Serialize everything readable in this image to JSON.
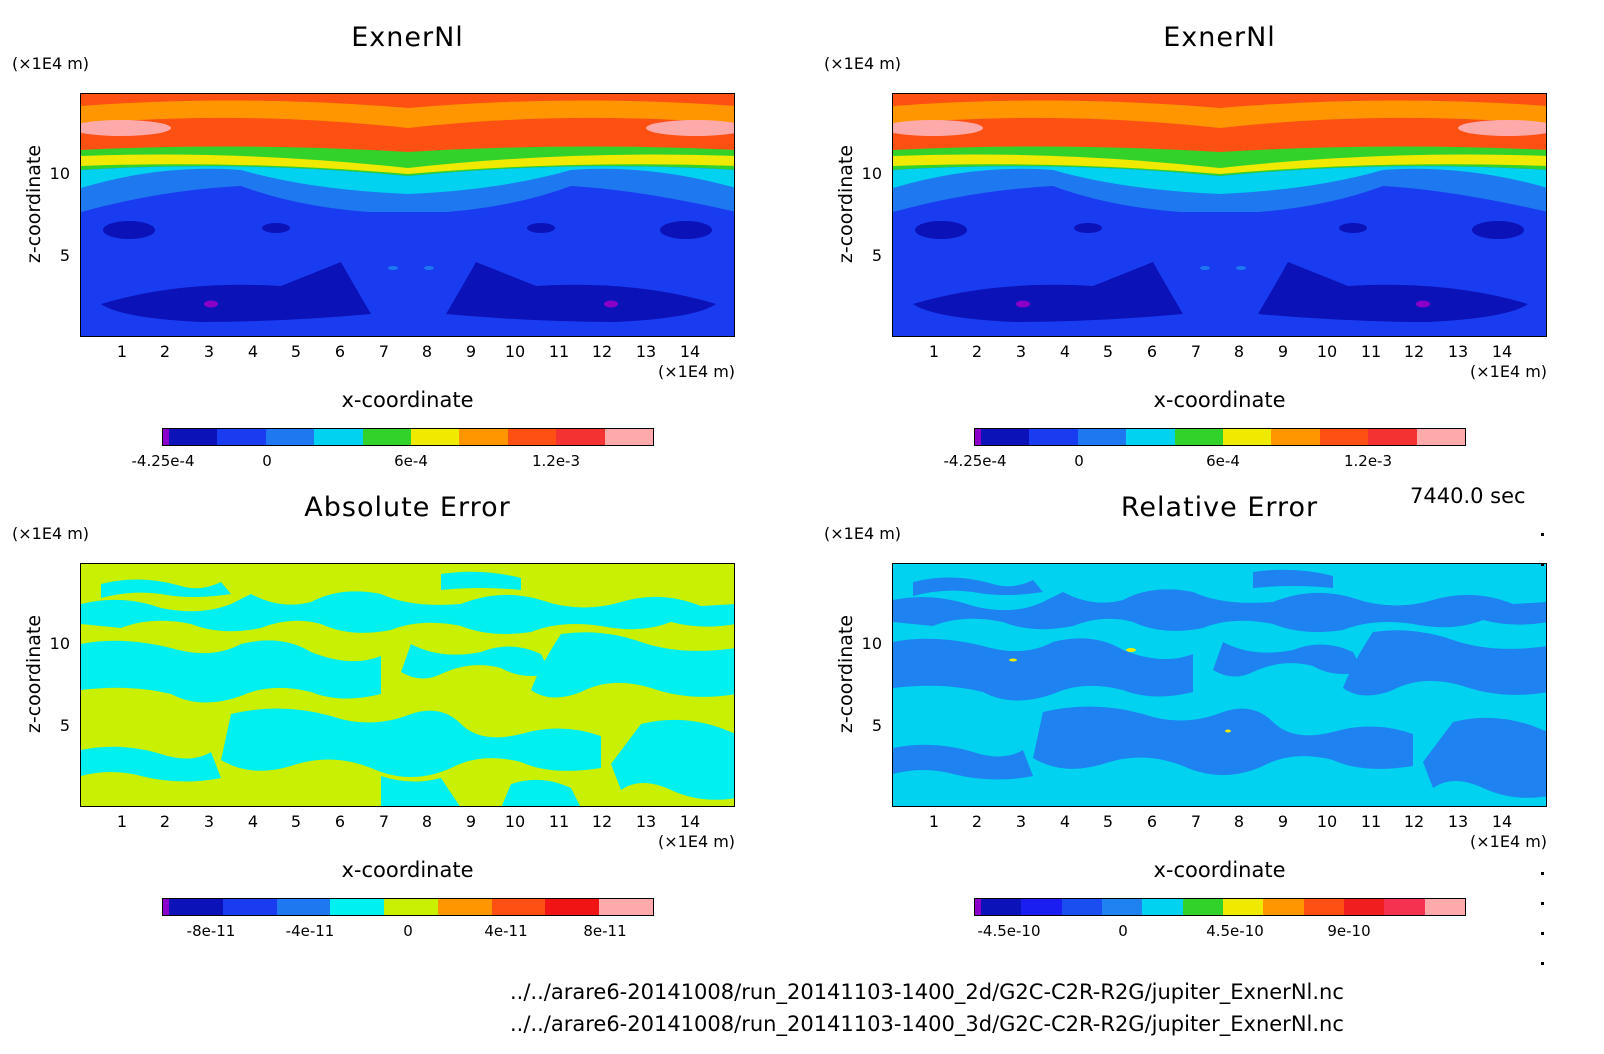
{
  "time_label": "7440.0 sec",
  "files": [
    "../../arare6-20141008/run_20141103-1400_2d/G2C-C2R-R2G/jupiter_ExnerNl.nc",
    "../../arare6-20141008/run_20141103-1400_3d/G2C-C2R-R2G/jupiter_ExnerNl.nc"
  ],
  "axes": {
    "xlabel": "x-coordinate",
    "ylabel": "z-coordinate",
    "xunit": "(×1E4 m)",
    "zunit": "(×1E4 m)",
    "xticks": [
      "1",
      "2",
      "3",
      "4",
      "5",
      "6",
      "7",
      "8",
      "9",
      "10",
      "11",
      "12",
      "13",
      "14"
    ],
    "yticks": [
      "5",
      "10"
    ]
  },
  "panels": [
    {
      "title": "ExnerNl",
      "colorbar": {
        "colors": [
          "#8a00c8",
          "#0a12b8",
          "#1a3cf0",
          "#1e78f0",
          "#00d2f0",
          "#32d22a",
          "#f0ea00",
          "#ff9600",
          "#ff5014",
          "#f53232",
          "#ffaaaa"
        ],
        "labels": [
          "-4.25e-4",
          "0",
          "6e-4",
          "1.2e-3"
        ]
      }
    },
    {
      "title": "ExnerNl",
      "colorbar": {
        "colors": [
          "#8a00c8",
          "#0a12b8",
          "#1a3cf0",
          "#1e78f0",
          "#00d2f0",
          "#32d22a",
          "#f0ea00",
          "#ff9600",
          "#ff5014",
          "#f53232",
          "#ffaaaa"
        ],
        "labels": [
          "-4.25e-4",
          "0",
          "6e-4",
          "1.2e-3"
        ]
      }
    },
    {
      "title": "Absolute Error",
      "colorbar": {
        "colors": [
          "#8a00c8",
          "#0a12b8",
          "#1a3cf0",
          "#1e78f0",
          "#00f0f0",
          "#c8f000",
          "#ff9600",
          "#ff5014",
          "#f01414",
          "#ffaaaa"
        ],
        "labels": [
          "-8e-11",
          "-4e-11",
          "0",
          "4e-11",
          "8e-11"
        ]
      }
    },
    {
      "title": "Relative Error",
      "colorbar": {
        "colors": [
          "#8a00c8",
          "#0a12b8",
          "#1a1ef0",
          "#1a4ef0",
          "#1e82f0",
          "#00d2f0",
          "#32d22a",
          "#f0ea00",
          "#ff9600",
          "#ff5014",
          "#f01e1e",
          "#f53250",
          "#ffaaaa"
        ],
        "labels": [
          "-4.5e-10",
          "0",
          "4.5e-10",
          "9e-10"
        ]
      }
    }
  ],
  "chart_data": [
    {
      "type": "heatmap",
      "title": "ExnerNl",
      "xlabel": "x-coordinate",
      "ylabel": "z-coordinate",
      "xunit": "(×1E4 m)",
      "yunit": "(×1E4 m)",
      "xlim": [
        0,
        15
      ],
      "ylim": [
        0,
        15
      ],
      "colorbar_labels": [
        "-4.25e-4",
        "0",
        "6e-4",
        "1.2e-3"
      ],
      "description_levels": [
        -0.000425,
        0,
        0.0006,
        0.0012
      ]
    },
    {
      "type": "heatmap",
      "title": "ExnerNl",
      "xlabel": "x-coordinate",
      "ylabel": "z-coordinate",
      "xunit": "(×1E4 m)",
      "yunit": "(×1E4 m)",
      "xlim": [
        0,
        15
      ],
      "ylim": [
        0,
        15
      ],
      "colorbar_labels": [
        "-4.25e-4",
        "0",
        "6e-4",
        "1.2e-3"
      ],
      "description_levels": [
        -0.000425,
        0,
        0.0006,
        0.0012
      ]
    },
    {
      "type": "heatmap",
      "title": "Absolute Error",
      "xlabel": "x-coordinate",
      "ylabel": "z-coordinate",
      "xunit": "(×1E4 m)",
      "yunit": "(×1E4 m)",
      "xlim": [
        0,
        15
      ],
      "ylim": [
        0,
        15
      ],
      "colorbar_labels": [
        "-8e-11",
        "-4e-11",
        "0",
        "4e-11",
        "8e-11"
      ],
      "description_levels": [
        -8e-11,
        -4e-11,
        0,
        4e-11,
        8e-11
      ]
    },
    {
      "type": "heatmap",
      "title": "Relative Error",
      "xlabel": "x-coordinate",
      "ylabel": "z-coordinate",
      "xunit": "(×1E4 m)",
      "yunit": "(×1E4 m)",
      "xlim": [
        0,
        15
      ],
      "ylim": [
        0,
        15
      ],
      "colorbar_labels": [
        "-4.5e-10",
        "0",
        "4.5e-10",
        "9e-10"
      ],
      "description_levels": [
        -4.5e-10,
        0,
        4.5e-10,
        9e-10
      ]
    }
  ]
}
